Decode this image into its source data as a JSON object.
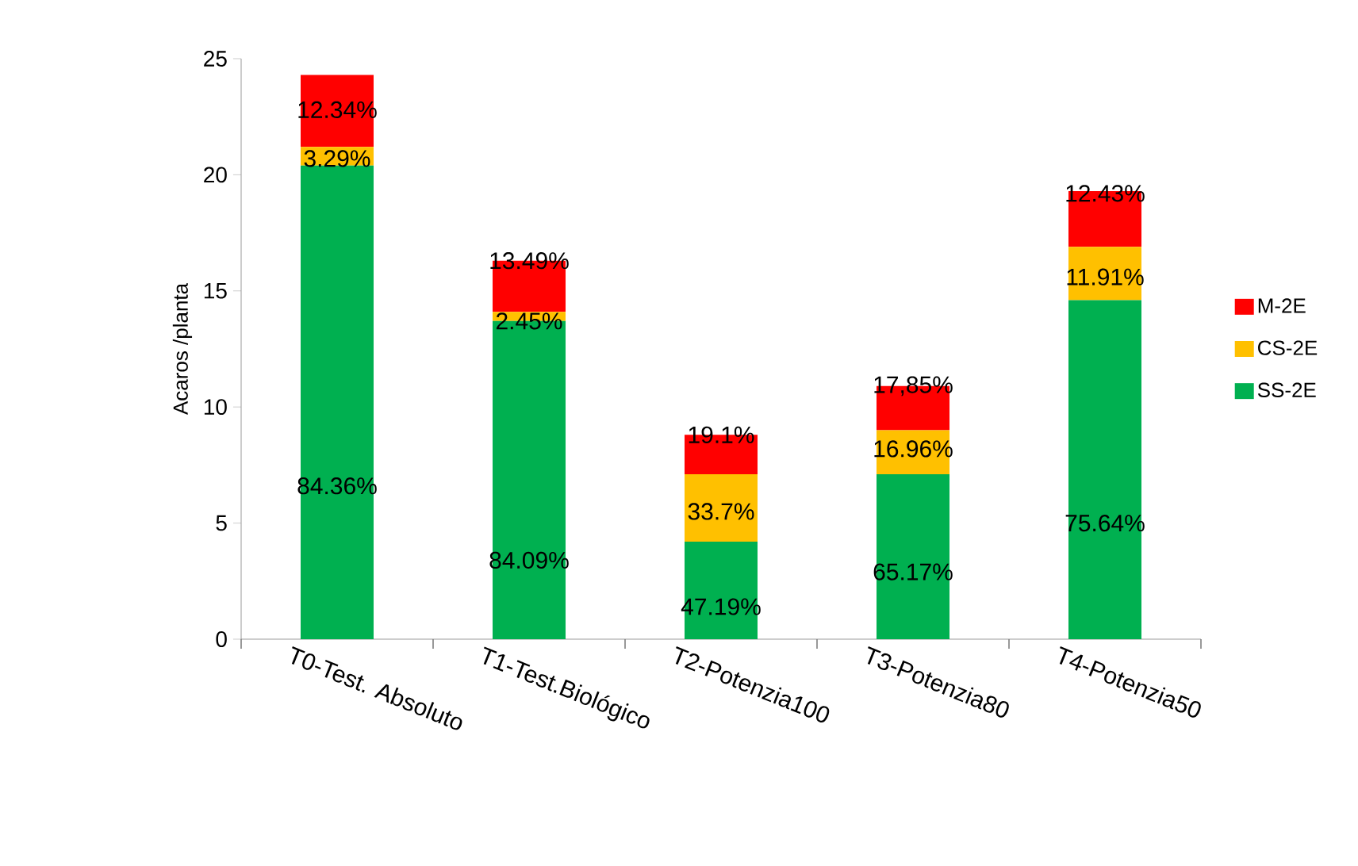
{
  "chart_data": {
    "type": "bar",
    "ylabel": "Acaros /planta",
    "stacked": true,
    "legend": "right",
    "categories": [
      "T0-Test. Absoluto",
      "T1-Test.Biológico",
      "T2-Potenzia100",
      "T3-Potenzia80",
      "T4-Potenzia50"
    ],
    "ylim": [
      0,
      25
    ],
    "yticks": [
      0,
      5,
      10,
      15,
      20,
      25
    ],
    "series": [
      {
        "name": "SS-2E",
        "color": "#00b050",
        "values": [
          20.4,
          13.7,
          4.2,
          7.1,
          14.6
        ]
      },
      {
        "name": "CS-2E",
        "color": "#ffc000",
        "values": [
          0.8,
          0.4,
          2.9,
          1.9,
          2.3
        ]
      },
      {
        "name": "M-2E",
        "color": "#ff0000",
        "values": [
          3.1,
          2.2,
          1.7,
          1.9,
          2.4
        ]
      }
    ],
    "annotations": [
      {
        "text": "84.36%",
        "x": "T0-Test. Absoluto",
        "y": 6.6
      },
      {
        "text": "84.09%",
        "x": "T1-Test.Biológico",
        "y": 3.4
      },
      {
        "text": "47.19%",
        "x": "T2-Potenzia100",
        "y": 1.4
      },
      {
        "text": "65.17%",
        "x": "T3-Potenzia80",
        "y": 2.9
      },
      {
        "text": "75.64%",
        "x": "T4-Potenzia50",
        "y": 5.0
      },
      {
        "text": "3.29%",
        "x": "T0-Test. Absoluto",
        "y": 20.7
      },
      {
        "text": "2.45%",
        "x": "T1-Test.Biológico",
        "y": 13.7
      },
      {
        "text": "33.7%",
        "x": "T2-Potenzia100",
        "y": 5.5
      },
      {
        "text": "16.96%",
        "x": "T3-Potenzia80",
        "y": 8.2
      },
      {
        "text": "11.91%",
        "x": "T4-Potenzia50",
        "y": 15.6
      },
      {
        "text": "12.34%",
        "x": "T0-Test. Absoluto",
        "y": 22.8
      },
      {
        "text": "13.49%",
        "x": "T1-Test.Biológico",
        "y": 16.3
      },
      {
        "text": "19.1%",
        "x": "T2-Potenzia100",
        "y": 8.8
      },
      {
        "text": "17,85%",
        "x": "T3-Potenzia80",
        "y": 10.9
      },
      {
        "text": "12.43%",
        "x": "T4-Potenzia50",
        "y": 19.2
      }
    ]
  }
}
